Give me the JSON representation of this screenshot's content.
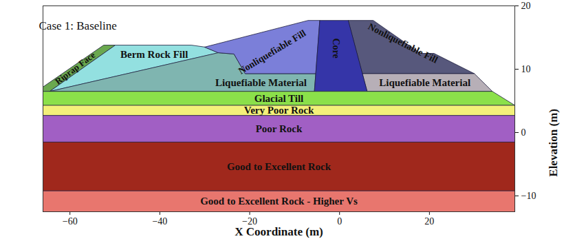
{
  "chart_data": {
    "type": "area",
    "title": "Case 1: Baseline",
    "x_label": "X Coordinate (m)",
    "y_label": "Elevation (m)",
    "xlim": [
      -66,
      39
    ],
    "xticks": [
      -60,
      -40,
      -20,
      0,
      20
    ],
    "ylim": [
      -12.5,
      20
    ],
    "yticks": [
      -10,
      0,
      10,
      20
    ],
    "series": [
      {
        "name": "Riprap Face",
        "color": "#6aa84f",
        "x": [
          -66,
          -66,
          -52.5,
          -49.9,
          -64.5
        ],
        "y": [
          6.5,
          7.2,
          13.8,
          13.8,
          6.5
        ]
      },
      {
        "name": "Berm Rock Fill",
        "color": "#93e0e0",
        "x": [
          -64.5,
          -49.9,
          -33,
          -30,
          -27
        ],
        "y": [
          6.5,
          13.8,
          13.8,
          13.5,
          12.6
        ]
      },
      {
        "name": "Liquefiable Material",
        "color": "#7fb5b0",
        "x": [
          -64.5,
          -27,
          -23.5,
          -21,
          -5.3,
          -5.6
        ],
        "y": [
          6.5,
          12.6,
          12.4,
          9.3,
          9.3,
          6.5
        ]
      },
      {
        "name": "Nonliquefiable Fill",
        "color": "#7b7fd9",
        "x": [
          -30,
          -7,
          -4.4,
          -5.3,
          -21,
          -23.5,
          -27
        ],
        "y": [
          13.5,
          17.7,
          17.7,
          9.3,
          9.3,
          12.4,
          12.6
        ]
      },
      {
        "name": "Core",
        "color": "#3535a8",
        "x": [
          -5.6,
          -4.4,
          2.0,
          6.2
        ],
        "y": [
          6.5,
          17.7,
          17.7,
          6.5
        ]
      },
      {
        "name": "Nonliquefiable Fill",
        "color": "#57587c",
        "x": [
          2.0,
          7.5,
          18,
          21,
          30,
          5.15
        ],
        "y": [
          17.7,
          17.7,
          12.5,
          12.5,
          9.3,
          9.3
        ]
      },
      {
        "name": "Liquefiable Material",
        "color": "#b7afb7",
        "x": [
          5.15,
          30,
          34,
          6.2
        ],
        "y": [
          9.3,
          9.3,
          6.5,
          6.5
        ]
      },
      {
        "name": "Glacial Till",
        "color": "#8be04a",
        "x": [
          -66,
          -66,
          34,
          39
        ],
        "y": [
          4.3,
          6.5,
          6.5,
          4.3
        ]
      },
      {
        "name": "Very Poor Rock",
        "color": "#f3f07a",
        "x": [
          -66,
          -66,
          39,
          39
        ],
        "y": [
          2.7,
          4.3,
          4.3,
          2.7
        ]
      },
      {
        "name": "Poor Rock",
        "color": "#a15fc4",
        "x": [
          -66,
          -66,
          39,
          39
        ],
        "y": [
          -1.5,
          2.7,
          2.7,
          -1.5
        ]
      },
      {
        "name": "Good to Excellent Rock",
        "color": "#a0281c",
        "x": [
          -66,
          -66,
          39,
          39
        ],
        "y": [
          -9.2,
          -1.5,
          -1.5,
          -9.2
        ]
      },
      {
        "name": "Good to Excellent Rock - Higher Vs",
        "color": "#e8766e",
        "x": [
          -66,
          -66,
          39,
          39
        ],
        "y": [
          -12.5,
          -9.2,
          -9.2,
          -12.5
        ]
      }
    ]
  }
}
